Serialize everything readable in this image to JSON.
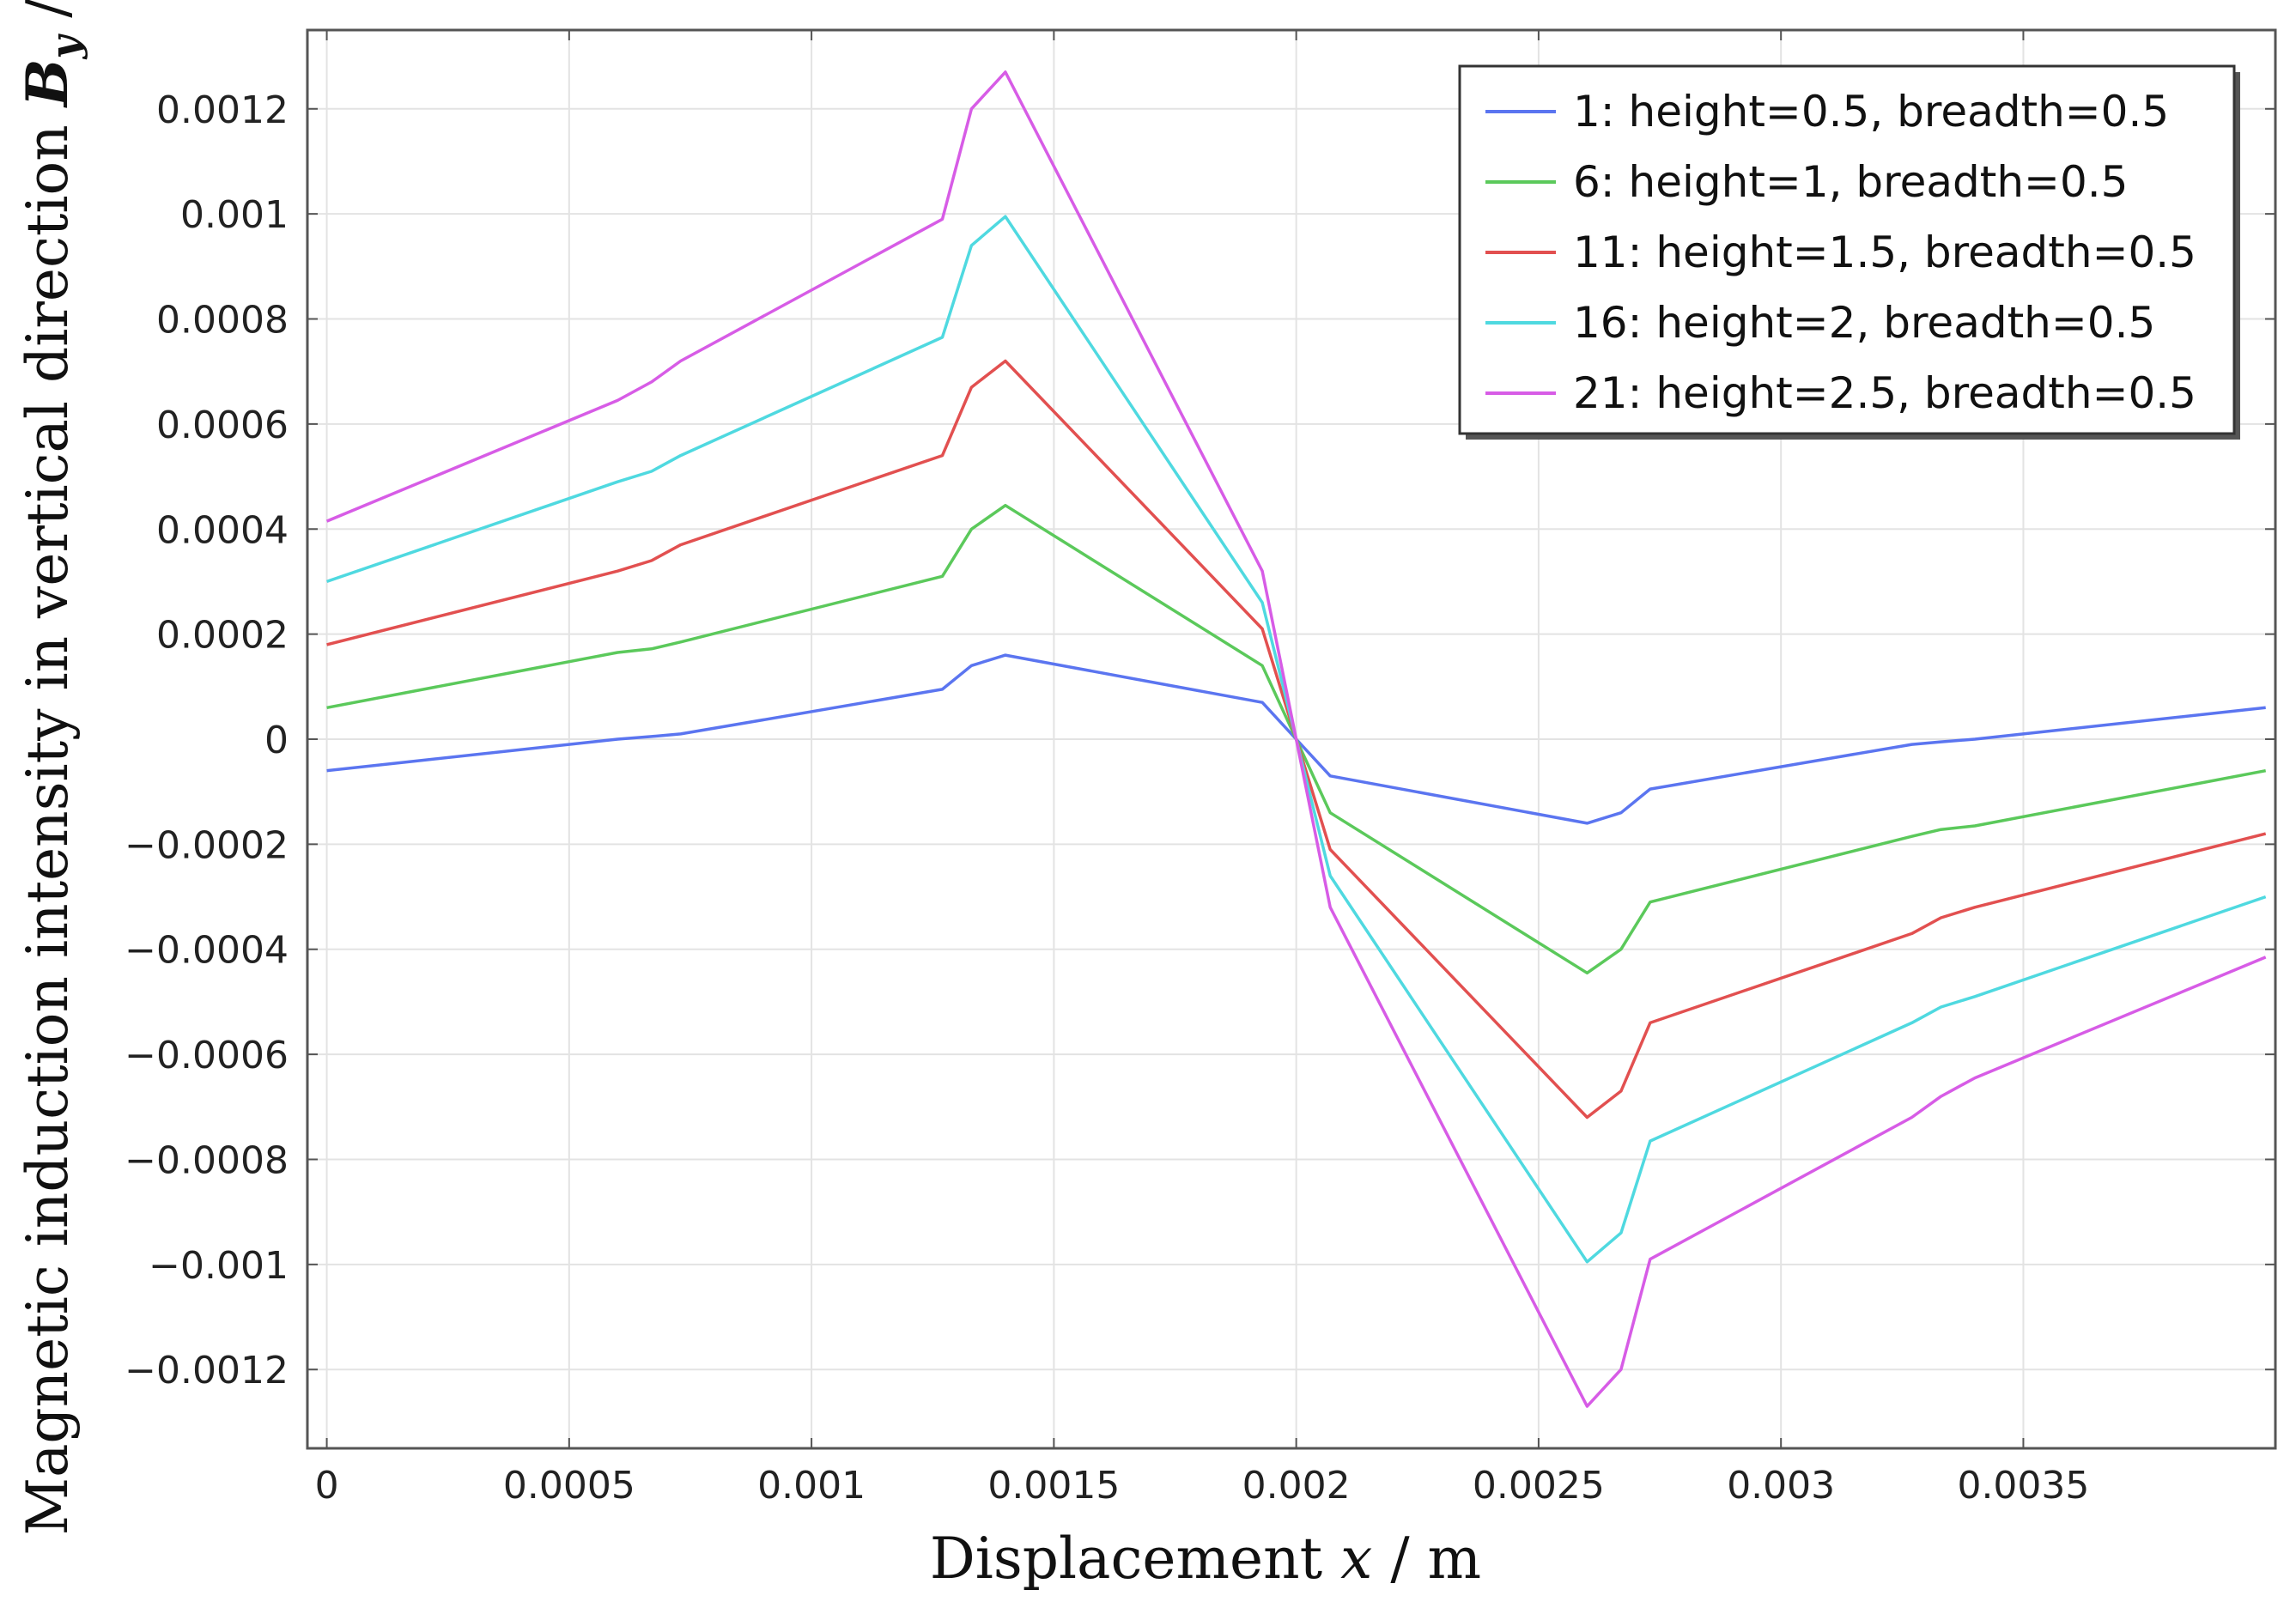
{
  "chart_data": {
    "type": "line",
    "xlabel_parts": [
      "Displacement ",
      "x",
      " / m"
    ],
    "ylabel_parts": [
      "Magnetic induction intensity in vertical direction ",
      "B",
      "y",
      " / T"
    ],
    "xlim": [
      -4e-05,
      0.00402
    ],
    "ylim": [
      -0.00135,
      0.00135
    ],
    "x_ticks": [
      0,
      0.0005,
      0.001,
      0.0015,
      0.002,
      0.0025,
      0.003,
      0.0035
    ],
    "x_tick_labels": [
      "0",
      "0.0005",
      "0.001",
      "0.0015",
      "0.002",
      "0.0025",
      "0.003",
      "0.0035"
    ],
    "y_ticks": [
      0.0012,
      0.001,
      0.0008,
      0.0006,
      0.0004,
      0.0002,
      0,
      -0.0002,
      -0.0004,
      -0.0006,
      -0.0008,
      -0.001,
      -0.0012
    ],
    "y_tick_labels": [
      "0.0012",
      "0.001",
      "0.0008",
      "0.0006",
      "0.0004",
      "0.0002",
      "0",
      "−0.0002",
      "−0.0004",
      "−0.0006",
      "−0.0008",
      "−0.001",
      "−0.0012"
    ],
    "grid": true,
    "legend_position": "top-right",
    "x": [
      0,
      0.0006,
      0.00067,
      0.00073,
      0.00127,
      0.00133,
      0.0014,
      0.00193,
      0.002,
      0.00207,
      0.0026,
      0.00267,
      0.00273,
      0.00327,
      0.00333,
      0.0034,
      0.004
    ],
    "series": [
      {
        "name": "1: height=0.5, breadth=0.5",
        "color": "#5b75f0",
        "values": [
          -6e-05,
          0.0,
          5e-06,
          1e-05,
          9.5e-05,
          0.00014,
          0.00016,
          7e-05,
          0.0,
          -7e-05,
          -0.00016,
          -0.00014,
          -9.5e-05,
          -1e-05,
          -5e-06,
          0.0,
          6e-05
        ]
      },
      {
        "name": "6: height=1, breadth=0.5",
        "color": "#5bc95b",
        "values": [
          6e-05,
          0.000165,
          0.000172,
          0.000185,
          0.00031,
          0.0004,
          0.000445,
          0.00014,
          0.0,
          -0.00014,
          -0.000445,
          -0.0004,
          -0.00031,
          -0.000185,
          -0.000172,
          -0.000165,
          -6e-05
        ]
      },
      {
        "name": "11: height=1.5, breadth=0.5",
        "color": "#e25050",
        "values": [
          0.00018,
          0.00032,
          0.00034,
          0.00037,
          0.00054,
          0.00067,
          0.00072,
          0.00021,
          0.0,
          -0.00021,
          -0.00072,
          -0.00067,
          -0.00054,
          -0.00037,
          -0.00034,
          -0.00032,
          -0.00018
        ]
      },
      {
        "name": "16: height=2, breadth=0.5",
        "color": "#4fd9e0",
        "values": [
          0.0003,
          0.00049,
          0.00051,
          0.00054,
          0.000765,
          0.00094,
          0.000995,
          0.00026,
          0.0,
          -0.00026,
          -0.000995,
          -0.00094,
          -0.000765,
          -0.00054,
          -0.00051,
          -0.00049,
          -0.0003
        ]
      },
      {
        "name": "21: height=2.5, breadth=0.5",
        "color": "#d75ce6",
        "values": [
          0.000415,
          0.000645,
          0.00068,
          0.00072,
          0.00099,
          0.0012,
          0.00127,
          0.00032,
          0.0,
          -0.00032,
          -0.00127,
          -0.0012,
          -0.00099,
          -0.00072,
          -0.00068,
          -0.000645,
          -0.000415
        ]
      }
    ]
  }
}
